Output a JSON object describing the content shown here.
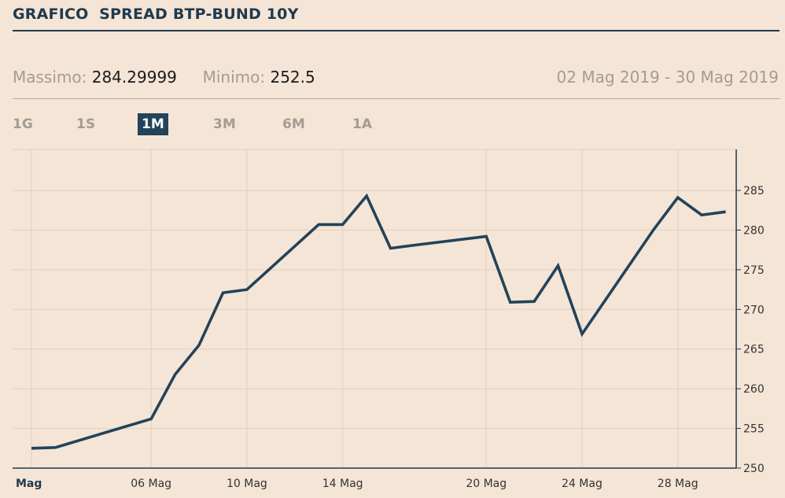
{
  "header": {
    "title": "GRAFICO  SPREAD BTP-BUND 10Y"
  },
  "stats": {
    "max_label": "Massimo:",
    "max_value": "284.29999",
    "min_label": "Minimo:",
    "min_value": "252.5",
    "date_range": "02 Mag 2019 - 30 Mag 2019"
  },
  "range_buttons": [
    {
      "label": "1G",
      "active": false
    },
    {
      "label": "1S",
      "active": false
    },
    {
      "label": "1M",
      "active": true
    },
    {
      "label": "3M",
      "active": false
    },
    {
      "label": "6M",
      "active": false
    },
    {
      "label": "1A",
      "active": false
    }
  ],
  "colors": {
    "background": "#f5e5d6",
    "line": "#22435a",
    "grid": "#e3d3c3",
    "accent": "#1e3a4f"
  },
  "chart_data": {
    "type": "line",
    "title": "GRAFICO  SPREAD BTP-BUND 10Y",
    "xlabel": "",
    "ylabel": "",
    "ylim": [
      250,
      290
    ],
    "y_ticks": [
      250,
      255,
      260,
      265,
      270,
      275,
      280,
      285
    ],
    "x_range": [
      "2019-05-01",
      "2019-05-31"
    ],
    "x_ticks": [
      {
        "date": "2019-05-01",
        "label": "Mag"
      },
      {
        "date": "2019-05-06",
        "label": "06 Mag"
      },
      {
        "date": "2019-05-10",
        "label": "10 Mag"
      },
      {
        "date": "2019-05-14",
        "label": "14 Mag"
      },
      {
        "date": "2019-05-20",
        "label": "20 Mag"
      },
      {
        "date": "2019-05-24",
        "label": "24 Mag"
      },
      {
        "date": "2019-05-28",
        "label": "28 Mag"
      }
    ],
    "grid": true,
    "y_axis_position": "right",
    "series": [
      {
        "x": [
          "2019-05-01",
          "2019-05-02",
          "2019-05-06",
          "2019-05-07",
          "2019-05-08",
          "2019-05-09",
          "2019-05-10",
          "2019-05-13",
          "2019-05-14",
          "2019-05-15",
          "2019-05-16",
          "2019-05-17",
          "2019-05-20",
          "2019-05-21",
          "2019-05-22",
          "2019-05-23",
          "2019-05-24",
          "2019-05-27",
          "2019-05-28",
          "2019-05-29",
          "2019-05-30"
        ],
        "values": [
          252.5,
          252.6,
          256.2,
          261.8,
          265.5,
          272.1,
          272.5,
          280.7,
          280.7,
          284.3,
          277.7,
          278.1,
          279.2,
          270.9,
          271.0,
          275.5,
          266.9,
          280.1,
          284.1,
          281.9,
          282.3
        ]
      }
    ]
  }
}
